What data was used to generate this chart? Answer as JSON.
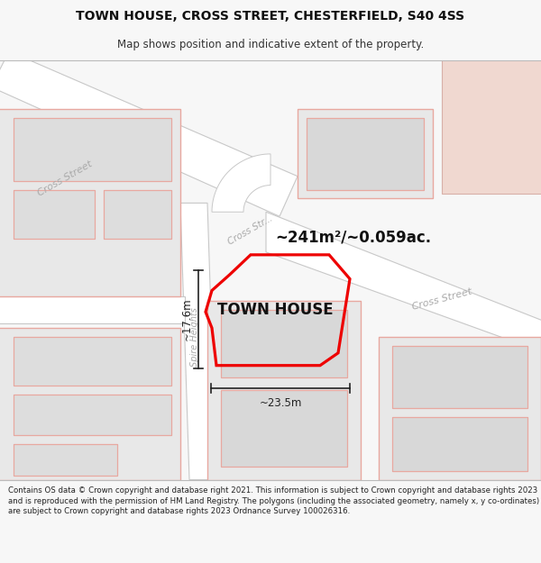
{
  "title_line1": "TOWN HOUSE, CROSS STREET, CHESTERFIELD, S40 4SS",
  "title_line2": "Map shows position and indicative extent of the property.",
  "footer_text": "Contains OS data © Crown copyright and database right 2021. This information is subject to Crown copyright and database rights 2023 and is reproduced with the permission of HM Land Registry. The polygons (including the associated geometry, namely x, y co-ordinates) are subject to Crown copyright and database rights 2023 Ordnance Survey 100026316.",
  "bg_color": "#f7f7f7",
  "map_bg": "#f2f1ef",
  "road_fill": "#ffffff",
  "road_stroke": "#c8c8c8",
  "building_fill": "#e8e8e8",
  "building_stroke": "#c0c0c0",
  "highlight_fill": "#f0d8d0",
  "highlight_stroke": "#d8b0a8",
  "property_stroke": "#ee0000",
  "dim_color": "#222222",
  "street_text_color": "#aaaaaa",
  "area_text": "~241m²/~0.059ac.",
  "property_label": "TOWN HOUSE",
  "dim_width": "~23.5m",
  "dim_height": "~17.6m",
  "street_label_cross_upper": "Cross Street",
  "street_label_cross_diag": "Cross Str...",
  "street_label_cross_right": "Cross Street",
  "street_label_spire": "Spire Heights",
  "outline_color": "#e8a8a0"
}
